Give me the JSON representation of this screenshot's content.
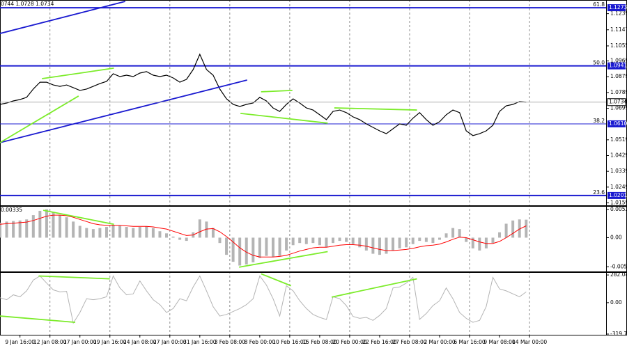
{
  "chart_data": [
    {
      "type": "line",
      "header": "0744 1.0728 1.0734",
      "ylim": [
        1.0145,
        1.1317
      ],
      "yticks": [
        1.1239,
        1.1147,
        1.1055,
        1.0969,
        1.0879,
        1.0789,
        1.0699,
        1.0519,
        1.0429,
        1.0339,
        1.0249,
        1.0159
      ],
      "levels": [
        {
          "value": 1.1273,
          "fib": "61.8",
          "width": 2
        },
        {
          "value": 1.0941,
          "fib": "50.0",
          "width": 2
        },
        {
          "value": 1.061,
          "label": "1.0610",
          "fib": "38.2",
          "width": 1
        },
        {
          "value": 1.0201,
          "fib": "23.6",
          "width": 2
        }
      ],
      "level_color": "#1a1ad0",
      "series": [
        {
          "kind": "line",
          "color": "#000000",
          "values": [
            1.0721,
            1.0729,
            1.0741,
            1.0749,
            1.0761,
            1.0809,
            1.0848,
            1.0848,
            1.0832,
            1.0824,
            1.0832,
            1.0817,
            1.0801,
            1.0809,
            1.0824,
            1.084,
            1.0852,
            1.0896,
            1.088,
            1.0888,
            1.088,
            1.09,
            1.0908,
            1.0888,
            1.088,
            1.0888,
            1.0872,
            1.0848,
            1.0864,
            1.092,
            1.1007,
            1.092,
            1.0888,
            1.0809,
            1.0753,
            1.0721,
            1.0709,
            1.0721,
            1.0729,
            1.0761,
            1.0741,
            1.0701,
            1.0681,
            1.0721,
            1.0753,
            1.0729,
            1.0701,
            1.0689,
            1.0662,
            1.0634,
            1.0681,
            1.0689,
            1.0674,
            1.065,
            1.0634,
            1.061,
            1.059,
            1.057,
            1.0554,
            1.0582,
            1.061,
            1.0602,
            1.0642,
            1.0674,
            1.0634,
            1.0602,
            1.0622,
            1.0662,
            1.0689,
            1.0674,
            1.057,
            1.0543,
            1.0554,
            1.057,
            1.0602,
            1.0681,
            1.0713,
            1.0721,
            1.0737,
            1.0734
          ]
        }
      ],
      "trendlines": [
        {
          "color": "#1a1ad0",
          "x": [
            0,
            18.8
          ],
          "y": [
            1.1126,
            1.1309
          ]
        },
        {
          "color": "#1a1ad0",
          "x": [
            0,
            37.1
          ],
          "y": [
            1.0503,
            1.086
          ]
        },
        {
          "color": "#7cec2a",
          "x": [
            6.3,
            17.1
          ],
          "y": [
            1.0868,
            1.0928
          ]
        },
        {
          "color": "#7cec2a",
          "x": [
            0,
            11.8
          ],
          "y": [
            1.0503,
            1.0769
          ]
        },
        {
          "color": "#7cec2a",
          "x": [
            39.2,
            43.9
          ],
          "y": [
            1.0793,
            1.0801
          ]
        },
        {
          "color": "#7cec2a",
          "x": [
            36.1,
            49.2
          ],
          "y": [
            1.067,
            1.0614
          ]
        },
        {
          "color": "#7cec2a",
          "x": [
            50.2,
            62.6
          ],
          "y": [
            1.0701,
            1.0689
          ]
        }
      ]
    },
    {
      "type": "bar",
      "header": "0.00335",
      "ylim": [
        -0.0063,
        0.0059
      ],
      "yticks": [
        0.00526,
        {
          "value": 0,
          "label": "0.00"
        },
        -0.00543
      ],
      "series": [
        {
          "kind": "bar",
          "color": "#b4b4b4",
          "values": [
            0.0028,
            0.003,
            0.0031,
            0.0032,
            0.0034,
            0.0042,
            0.005,
            0.0053,
            0.0048,
            0.0042,
            0.0038,
            0.003,
            0.0022,
            0.0018,
            0.0016,
            0.0018,
            0.002,
            0.0024,
            0.0022,
            0.002,
            0.0018,
            0.002,
            0.0021,
            0.0018,
            0.0012,
            0.0008,
            0.0002,
            -0.0004,
            -0.0006,
            0.001,
            0.0034,
            0.003,
            0.0018,
            -0.001,
            -0.0032,
            -0.0045,
            -0.0052,
            -0.005,
            -0.0046,
            -0.0038,
            -0.0034,
            -0.0036,
            -0.0034,
            -0.0024,
            -0.0014,
            -0.001,
            -0.0012,
            -0.001,
            -0.0014,
            -0.0018,
            -0.001,
            -0.0006,
            -0.0008,
            -0.0012,
            -0.0018,
            -0.0024,
            -0.003,
            -0.0032,
            -0.003,
            -0.0024,
            -0.002,
            -0.0018,
            -0.0012,
            -0.0006,
            -0.0008,
            -0.001,
            -0.0004,
            0.0008,
            0.0018,
            0.0016,
            -0.0008,
            -0.002,
            -0.0024,
            -0.002,
            -0.001,
            0.001,
            0.0026,
            0.0032,
            0.0034,
            0.00335
          ]
        },
        {
          "kind": "line",
          "color": "#ff0000",
          "values": [
            0.0025,
            0.0026,
            0.0027,
            0.0028,
            0.0029,
            0.0032,
            0.0036,
            0.004,
            0.0042,
            0.0042,
            0.0041,
            0.0038,
            0.0034,
            0.003,
            0.0026,
            0.0024,
            0.0023,
            0.0023,
            0.0023,
            0.0022,
            0.0021,
            0.0021,
            0.0021,
            0.002,
            0.0018,
            0.0016,
            0.0012,
            0.0008,
            0.0004,
            0.0005,
            0.0011,
            0.0016,
            0.0017,
            0.0011,
            0.0002,
            -0.0008,
            -0.0019,
            -0.0027,
            -0.0033,
            -0.0036,
            -0.0036,
            -0.0036,
            -0.0035,
            -0.0033,
            -0.0029,
            -0.0025,
            -0.0022,
            -0.0019,
            -0.0018,
            -0.0018,
            -0.0016,
            -0.0014,
            -0.0013,
            -0.0013,
            -0.0014,
            -0.0016,
            -0.0019,
            -0.0022,
            -0.0024,
            -0.0024,
            -0.0023,
            -0.0022,
            -0.002,
            -0.0017,
            -0.0015,
            -0.0014,
            -0.0012,
            -0.0008,
            -0.0003,
            0.0001,
            0,
            -0.0004,
            -0.0008,
            -0.0011,
            -0.0011,
            -0.0007,
            0,
            0.0008,
            0.0016,
            0.0022
          ]
        }
      ],
      "trendlines": [
        {
          "color": "#7cec2a",
          "x": [
            6.5,
            17.1
          ],
          "y": [
            0.0051,
            0.0025
          ]
        },
        {
          "color": "#7cec2a",
          "x": [
            35.9,
            49.2
          ],
          "y": [
            -0.0055,
            -0.0026
          ]
        }
      ]
    },
    {
      "type": "line",
      "ylim": [
        -327,
        311
      ],
      "yticks": [
        282.0457,
        {
          "value": 0,
          "label": "0.00"
        },
        -319.735
      ],
      "xlim": [
        0,
        91
      ],
      "xticks": [
        {
          "value": 3,
          "label": "9 Jan 16:00"
        },
        {
          "value": 7.5,
          "label": "12 Jan 08:00"
        },
        {
          "value": 12,
          "label": "17 Jan 00:00"
        },
        {
          "value": 16.5,
          "label": "19 Jan 16:00"
        },
        {
          "value": 21,
          "label": "24 Jan 08:00"
        },
        {
          "value": 25.5,
          "label": "27 Jan 00:00"
        },
        {
          "value": 30,
          "label": "31 Jan 16:00"
        },
        {
          "value": 34.5,
          "label": "3 Feb 08:00"
        },
        {
          "value": 39,
          "label": "8 Feb 00:00"
        },
        {
          "value": 43.5,
          "label": "10 Feb 16:00"
        },
        {
          "value": 48,
          "label": "15 Feb 08:00"
        },
        {
          "value": 52.5,
          "label": "20 Feb 00:00"
        },
        {
          "value": 57,
          "label": "22 Feb 16:00"
        },
        {
          "value": 61.5,
          "label": "27 Feb 08:00"
        },
        {
          "value": 66,
          "label": "2 Mar 00:00"
        },
        {
          "value": 70.5,
          "label": "6 Mar 16:00"
        },
        {
          "value": 75,
          "label": "9 Mar 08:00"
        },
        {
          "value": 79.5,
          "label": "14 Mar 00:00"
        }
      ],
      "series": [
        {
          "kind": "line",
          "color": "#b4b4b4",
          "values": [
            50,
            30,
            80,
            60,
            120,
            230,
            272,
            200,
            130,
            110,
            115,
            -208,
            -100,
            40,
            30,
            40,
            60,
            272,
            150,
            80,
            90,
            222,
            120,
            30,
            -20,
            -100,
            -60,
            40,
            20,
            160,
            272,
            120,
            -40,
            -136,
            -120,
            -90,
            -60,
            -20,
            40,
            272,
            180,
            40,
            -136,
            172,
            120,
            20,
            -60,
            -120,
            -150,
            -172,
            60,
            40,
            -30,
            -140,
            -160,
            -150,
            -180,
            -130,
            -60,
            150,
            160,
            200,
            258,
            -170,
            -110,
            -30,
            20,
            150,
            40,
            -100,
            -160,
            -200,
            -180,
            -40,
            258,
            140,
            120,
            90,
            60,
            110
          ]
        }
      ],
      "trendlines": [
        {
          "color": "#7cec2a",
          "x": [
            5.8,
            16.5
          ],
          "y": [
            272,
            243
          ]
        },
        {
          "color": "#7cec2a",
          "x": [
            0,
            11.3
          ],
          "y": [
            -136,
            -200
          ]
        },
        {
          "color": "#7cec2a",
          "x": [
            39.2,
            43.7
          ],
          "y": [
            294,
            172
          ]
        },
        {
          "color": "#7cec2a",
          "x": [
            49.8,
            62.6
          ],
          "y": [
            57,
            243
          ]
        }
      ]
    }
  ]
}
